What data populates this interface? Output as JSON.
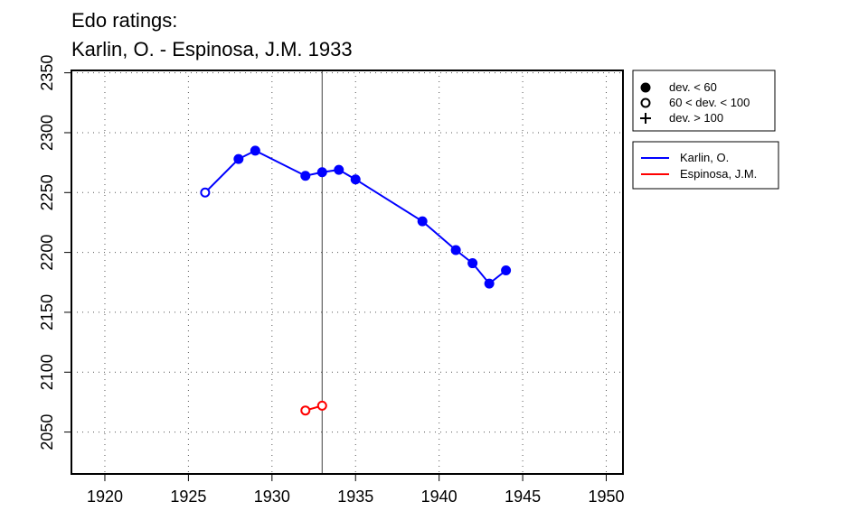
{
  "chart_data": {
    "type": "line",
    "title_lines": [
      "Edo ratings:",
      "Karlin, O. - Espinosa, J.M. 1933"
    ],
    "xlabel": "",
    "ylabel": "",
    "xlim": [
      1918,
      1951
    ],
    "ylim": [
      2015,
      2352
    ],
    "x_ticks": [
      1920,
      1925,
      1930,
      1935,
      1940,
      1945,
      1950
    ],
    "y_ticks": [
      2050,
      2100,
      2150,
      2200,
      2250,
      2300,
      2350
    ],
    "grid": true,
    "reference_line_x": 1933,
    "symbol_legend": [
      {
        "marker": "filled-circle",
        "label": "dev. < 60"
      },
      {
        "marker": "open-circle",
        "label": "60 < dev. < 100"
      },
      {
        "marker": "plus",
        "label": "dev. > 100"
      }
    ],
    "legend_position": "right",
    "series": [
      {
        "name": "Karlin, O.",
        "color": "#0000ff",
        "points": [
          {
            "x": 1926,
            "y": 2250,
            "marker": "open-circle"
          },
          {
            "x": 1928,
            "y": 2278,
            "marker": "filled-circle"
          },
          {
            "x": 1929,
            "y": 2285,
            "marker": "filled-circle"
          },
          {
            "x": 1932,
            "y": 2264,
            "marker": "filled-circle"
          },
          {
            "x": 1933,
            "y": 2267,
            "marker": "filled-circle"
          },
          {
            "x": 1934,
            "y": 2269,
            "marker": "filled-circle"
          },
          {
            "x": 1935,
            "y": 2261,
            "marker": "filled-circle"
          },
          {
            "x": 1939,
            "y": 2226,
            "marker": "filled-circle"
          },
          {
            "x": 1941,
            "y": 2202,
            "marker": "filled-circle"
          },
          {
            "x": 1942,
            "y": 2191,
            "marker": "filled-circle"
          },
          {
            "x": 1943,
            "y": 2174,
            "marker": "filled-circle"
          },
          {
            "x": 1944,
            "y": 2185,
            "marker": "filled-circle"
          }
        ]
      },
      {
        "name": "Espinosa, J.M.",
        "color": "#ff0000",
        "points": [
          {
            "x": 1932,
            "y": 2068,
            "marker": "open-circle"
          },
          {
            "x": 1933,
            "y": 2072,
            "marker": "open-circle"
          }
        ]
      }
    ]
  }
}
